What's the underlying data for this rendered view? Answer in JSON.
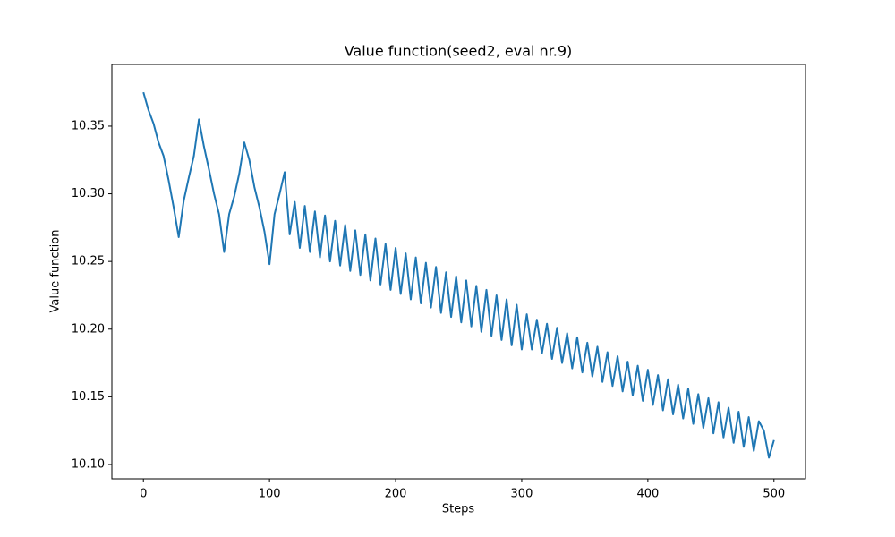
{
  "chart_data": {
    "type": "line",
    "title": "Value function(seed2, eval nr.9)",
    "xlabel": "Steps",
    "ylabel": "Value function",
    "color": "#1f77b4",
    "x": [
      0,
      4,
      8,
      12,
      16,
      20,
      24,
      28,
      32,
      36,
      40,
      44,
      48,
      52,
      56,
      60,
      64,
      68,
      72,
      76,
      80,
      84,
      88,
      92,
      96,
      100,
      104,
      108,
      112,
      116,
      120,
      124,
      128,
      132,
      136,
      140,
      144,
      148,
      152,
      156,
      160,
      164,
      168,
      172,
      176,
      180,
      184,
      188,
      192,
      196,
      200,
      204,
      208,
      212,
      216,
      220,
      224,
      228,
      232,
      236,
      240,
      244,
      248,
      252,
      256,
      260,
      264,
      268,
      272,
      276,
      280,
      284,
      288,
      292,
      296,
      300,
      304,
      308,
      312,
      316,
      320,
      324,
      328,
      332,
      336,
      340,
      344,
      348,
      352,
      356,
      360,
      364,
      368,
      372,
      376,
      380,
      384,
      388,
      392,
      396,
      400,
      404,
      408,
      412,
      416,
      420,
      424,
      428,
      432,
      436,
      440,
      444,
      448,
      452,
      456,
      460,
      464,
      468,
      472,
      476,
      480,
      484,
      488,
      492,
      496,
      500
    ],
    "values": [
      10.375,
      10.362,
      10.352,
      10.338,
      10.328,
      10.31,
      10.29,
      10.268,
      10.295,
      10.312,
      10.328,
      10.355,
      10.335,
      10.318,
      10.3,
      10.285,
      10.257,
      10.285,
      10.298,
      10.315,
      10.338,
      10.325,
      10.305,
      10.29,
      10.272,
      10.248,
      10.285,
      10.3,
      10.316,
      10.27,
      10.294,
      10.26,
      10.291,
      10.257,
      10.287,
      10.253,
      10.284,
      10.25,
      10.28,
      10.247,
      10.277,
      10.243,
      10.273,
      10.24,
      10.27,
      10.236,
      10.267,
      10.233,
      10.263,
      10.229,
      10.26,
      10.226,
      10.256,
      10.222,
      10.253,
      10.219,
      10.249,
      10.216,
      10.246,
      10.212,
      10.242,
      10.209,
      10.239,
      10.205,
      10.236,
      10.202,
      10.232,
      10.198,
      10.229,
      10.195,
      10.225,
      10.192,
      10.222,
      10.188,
      10.218,
      10.185,
      10.211,
      10.185,
      10.207,
      10.182,
      10.204,
      10.178,
      10.201,
      10.175,
      10.197,
      10.171,
      10.194,
      10.168,
      10.19,
      10.165,
      10.187,
      10.161,
      10.183,
      10.158,
      10.18,
      10.154,
      10.176,
      10.151,
      10.173,
      10.147,
      10.17,
      10.144,
      10.166,
      10.14,
      10.163,
      10.137,
      10.159,
      10.134,
      10.156,
      10.13,
      10.152,
      10.127,
      10.149,
      10.123,
      10.146,
      10.12,
      10.142,
      10.116,
      10.139,
      10.113,
      10.135,
      10.11,
      10.132,
      10.125,
      10.105,
      10.118
    ],
    "xlim": [
      -25,
      525
    ],
    "ylim": [
      10.0894,
      10.3956
    ],
    "xticks": [
      0,
      100,
      200,
      300,
      400,
      500
    ],
    "yticks": [
      {
        "value": 10.1,
        "label": "10.10"
      },
      10.15,
      {
        "value": 10.2,
        "label": "10.20"
      },
      10.25,
      {
        "value": 10.3,
        "label": "10.30"
      },
      10.35
    ]
  }
}
